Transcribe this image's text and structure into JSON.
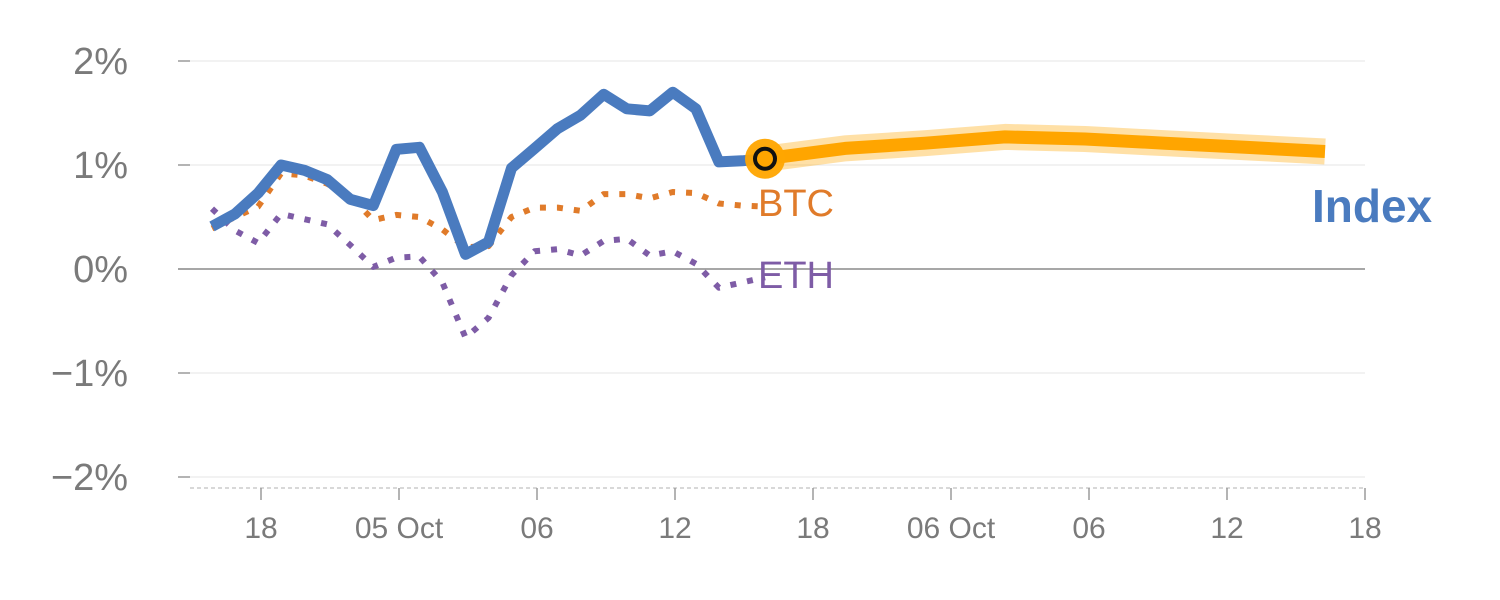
{
  "chart_data": {
    "type": "line",
    "title": "",
    "xlabel": "",
    "ylabel": "",
    "ylim": [
      -2,
      2
    ],
    "y_ticks": [
      {
        "value": 2,
        "label": "2%"
      },
      {
        "value": 1,
        "label": "1%"
      },
      {
        "value": 0,
        "label": "0%"
      },
      {
        "value": -1,
        "label": "−1%"
      },
      {
        "value": -2,
        "label": "−2%"
      }
    ],
    "x_ticks": [
      "18",
      "05 Oct",
      "06",
      "12",
      "18",
      "06 Oct",
      "06",
      "12",
      "18"
    ],
    "grid": true,
    "colors": {
      "index": "#4a7bbf",
      "btc": "#e07b2a",
      "eth": "#7e5ca6",
      "forecast": "#ffa500",
      "grid": "#e6e6e6",
      "zero_line": "#8a8a8a",
      "tick_text": "#7a7a7a"
    },
    "series": [
      {
        "name": "Index",
        "style": "solid",
        "values": [
          0.41,
          0.53,
          0.73,
          1.0,
          0.95,
          0.86,
          0.67,
          0.61,
          1.15,
          1.17,
          0.74,
          0.14,
          0.26,
          0.97,
          1.16,
          1.35,
          1.48,
          1.68,
          1.54,
          1.52,
          1.7,
          1.54,
          1.03,
          1.04,
          1.06
        ]
      },
      {
        "name": "BTC",
        "style": "dotted",
        "values": [
          0.39,
          0.5,
          0.6,
          0.92,
          0.9,
          0.82,
          0.7,
          0.47,
          0.52,
          0.5,
          0.38,
          0.21,
          0.22,
          0.5,
          0.59,
          0.59,
          0.56,
          0.72,
          0.72,
          0.68,
          0.74,
          0.73,
          0.63,
          0.61,
          0.6
        ]
      },
      {
        "name": "ETH",
        "style": "dotted",
        "values": [
          0.58,
          0.37,
          0.25,
          0.53,
          0.48,
          0.43,
          0.23,
          0.02,
          0.11,
          0.12,
          -0.13,
          -0.66,
          -0.47,
          -0.06,
          0.17,
          0.19,
          0.13,
          0.27,
          0.29,
          0.13,
          0.17,
          0.05,
          -0.18,
          -0.13,
          -0.08
        ]
      },
      {
        "name": "Index",
        "style": "forecast",
        "values": [
          1.06,
          1.16,
          1.21,
          1.27,
          1.25,
          1.21,
          1.17,
          1.13
        ]
      }
    ],
    "labels": {
      "btc": "BTC",
      "eth": "ETH",
      "index": "Index"
    }
  }
}
